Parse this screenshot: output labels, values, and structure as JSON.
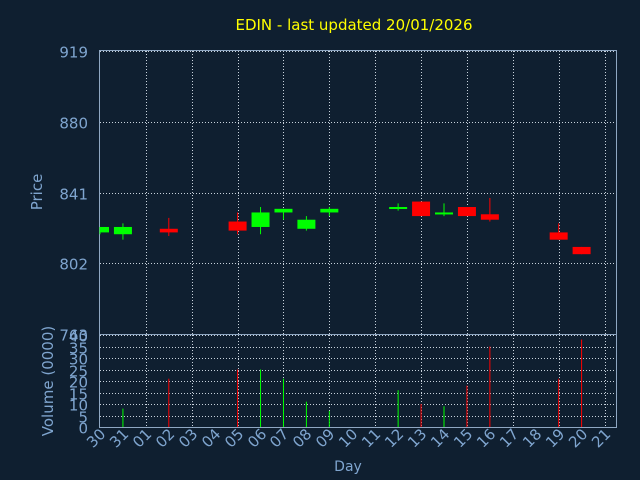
{
  "chart_data": {
    "type": "candlestick",
    "title": "EDIN - last updated 20/01/2026",
    "price_axis": {
      "label": "Price",
      "ylim": [
        763,
        919
      ],
      "ticks": [
        "919",
        "880",
        "841",
        "802",
        "763"
      ]
    },
    "volume_axis": {
      "label": "Volume (0000)",
      "ylim": [
        0,
        40
      ],
      "ticks": [
        "40",
        "35",
        "30",
        "25",
        "20",
        "15",
        "10",
        "5",
        "0"
      ]
    },
    "x_axis": {
      "label": "Day",
      "ticks": [
        "30",
        "31",
        "01",
        "02",
        "03",
        "04",
        "05",
        "06",
        "07",
        "08",
        "09",
        "10",
        "11",
        "12",
        "13",
        "14",
        "15",
        "16",
        "17",
        "18",
        "19",
        "20",
        "21"
      ]
    },
    "grid": true,
    "colors": {
      "up": "#00ff00",
      "down": "#ff0000",
      "title": "#ffff00",
      "axis_text": "#7fa5cf",
      "background": "#0f1f30",
      "frame": "#8fa7c2"
    },
    "candles": [
      {
        "day": "30",
        "open": 819,
        "high": 822,
        "low": 818,
        "close": 822,
        "volume": 0,
        "dir": "up"
      },
      {
        "day": "31",
        "open": 818,
        "high": 824,
        "low": 815,
        "close": 822,
        "volume": 8,
        "dir": "up"
      },
      {
        "day": "02",
        "open": 821,
        "high": 827,
        "low": 817,
        "close": 819,
        "volume": 21,
        "dir": "down"
      },
      {
        "day": "05",
        "open": 825,
        "high": 830,
        "low": 818,
        "close": 820,
        "volume": 25,
        "dir": "down"
      },
      {
        "day": "06",
        "open": 822,
        "high": 833,
        "low": 818,
        "close": 830,
        "volume": 25,
        "dir": "up"
      },
      {
        "day": "07",
        "open": 830,
        "high": 832,
        "low": 826,
        "close": 832,
        "volume": 21,
        "dir": "up"
      },
      {
        "day": "08",
        "open": 821,
        "high": 828,
        "low": 820,
        "close": 826,
        "volume": 11,
        "dir": "up"
      },
      {
        "day": "09",
        "open": 830,
        "high": 833,
        "low": 828,
        "close": 832,
        "volume": 7,
        "dir": "up"
      },
      {
        "day": "12",
        "open": 832,
        "high": 835,
        "low": 831,
        "close": 833,
        "volume": 16,
        "dir": "up"
      },
      {
        "day": "13",
        "open": 836,
        "high": 836,
        "low": 828,
        "close": 828,
        "volume": 10,
        "dir": "down"
      },
      {
        "day": "14",
        "open": 829,
        "high": 835,
        "low": 828,
        "close": 830,
        "volume": 9,
        "dir": "up"
      },
      {
        "day": "15",
        "open": 833,
        "high": 833,
        "low": 828,
        "close": 828,
        "volume": 18,
        "dir": "down"
      },
      {
        "day": "16",
        "open": 829,
        "high": 838,
        "low": 825,
        "close": 826,
        "volume": 35,
        "dir": "down"
      },
      {
        "day": "19",
        "open": 819,
        "high": 824,
        "low": 815,
        "close": 815,
        "volume": 21,
        "dir": "down"
      },
      {
        "day": "20",
        "open": 811,
        "high": 811,
        "low": 807,
        "close": 807,
        "volume": 38,
        "dir": "down"
      }
    ]
  }
}
